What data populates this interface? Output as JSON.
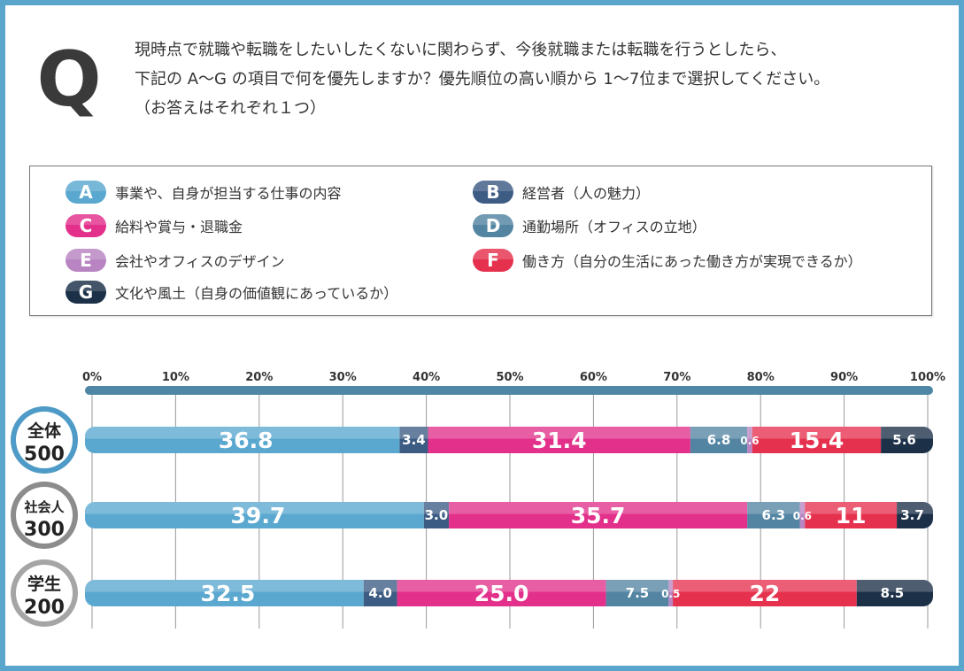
{
  "question": {
    "mark": "Q",
    "lines": [
      "現時点で就職や転職をしたいしたくないに関わらず、今後就職または転職を行うとしたら、",
      "下記の A～G の項目で何を優先しますか？優先順位の高い順から 1～7位まで選択してください。",
      "（お答えはそれぞれ１つ）"
    ]
  },
  "legend": [
    {
      "letter": "A",
      "label": "事業や、自身が担当する仕事の内容",
      "color": "#5aa8cf"
    },
    {
      "letter": "B",
      "label": "経営者（人の魅力）",
      "color": "#3d5c84"
    },
    {
      "letter": "C",
      "label": "給料や賞与・退職金",
      "color": "#e2308b"
    },
    {
      "letter": "D",
      "label": "通勤場所（オフィスの立地）",
      "color": "#5385a3"
    },
    {
      "letter": "E",
      "label": "会社やオフィスのデザイン",
      "color": "#b884c2"
    },
    {
      "letter": "F",
      "label": "働き方（自分の生活にあった働き方が実現できるか）",
      "color": "#e5314e"
    },
    {
      "letter": "G",
      "label": "文化や風土（自身の価値観にあっているか）",
      "color": "#1c3048"
    }
  ],
  "chart_data": {
    "type": "bar",
    "orientation": "horizontal",
    "stacked": true,
    "xlim": [
      0,
      100
    ],
    "x_ticks": [
      "0%",
      "10%",
      "20%",
      "30%",
      "40%",
      "50%",
      "60%",
      "70%",
      "80%",
      "90%",
      "100%"
    ],
    "grid": true,
    "categories": [
      {
        "name": "全体",
        "n": "500"
      },
      {
        "name": "社会人",
        "n": "300"
      },
      {
        "name": "学生",
        "n": "200"
      }
    ],
    "category_colors": [
      "#4f9bc7",
      "#8c8c8c",
      "#a5a5a5"
    ],
    "series": [
      {
        "name": "A",
        "color": "#5aa8cf",
        "values": [
          36.8,
          39.7,
          32.5
        ],
        "labels": [
          "36.8",
          "39.7",
          "32.5"
        ]
      },
      {
        "name": "B",
        "color": "#3d5c84",
        "values": [
          3.4,
          3.0,
          4.0
        ],
        "labels": [
          "3.4",
          "3.0",
          "4.0"
        ]
      },
      {
        "name": "C",
        "color": "#e2308b",
        "values": [
          31.4,
          35.7,
          25.0
        ],
        "labels": [
          "31.4",
          "35.7",
          "25.0"
        ]
      },
      {
        "name": "D",
        "color": "#5385a3",
        "values": [
          6.8,
          6.3,
          7.5
        ],
        "labels": [
          "6.8",
          "6.3",
          "7.5"
        ]
      },
      {
        "name": "E",
        "color": "#b884c2",
        "values": [
          0.6,
          0.6,
          0.5
        ],
        "labels": [
          "0.6",
          "0.6",
          "0.5"
        ]
      },
      {
        "name": "F",
        "color": "#e5314e",
        "values": [
          15.4,
          11,
          22
        ],
        "labels": [
          "15.4",
          "11",
          "22"
        ]
      },
      {
        "name": "G",
        "color": "#1c3048",
        "values": [
          5.6,
          3.7,
          8.5
        ],
        "labels": [
          "5.6",
          "3.7",
          "8.5"
        ]
      }
    ],
    "axis_bar_color": "#4f86a6"
  }
}
